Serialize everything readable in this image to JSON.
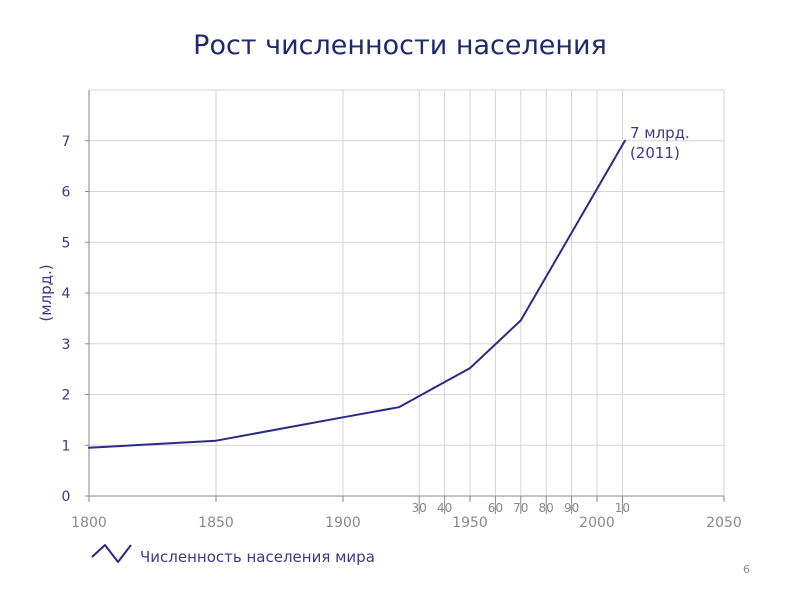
{
  "slide": {
    "title": "Рост численности населения",
    "page_number": "6"
  },
  "chart_data": {
    "type": "line",
    "title": "Рост численности населения",
    "xlabel": "",
    "ylabel": "(млрд.)",
    "xlim": [
      1800,
      2050
    ],
    "ylim": [
      0,
      8
    ],
    "grid": true,
    "major_x_ticks": [
      {
        "value": 1800,
        "label": "1800"
      },
      {
        "value": 1850,
        "label": "1850"
      },
      {
        "value": 1900,
        "label": "1900"
      },
      {
        "value": 1950,
        "label": "1950"
      },
      {
        "value": 2000,
        "label": "2000"
      },
      {
        "value": 2050,
        "label": "2050"
      }
    ],
    "minor_x_ticks": [
      {
        "value": 1930,
        "label": "30"
      },
      {
        "value": 1940,
        "label": "40"
      },
      {
        "value": 1960,
        "label": "60"
      },
      {
        "value": 1970,
        "label": "70"
      },
      {
        "value": 1980,
        "label": "80"
      },
      {
        "value": 1990,
        "label": "90"
      },
      {
        "value": 2010,
        "label": "10"
      }
    ],
    "y_ticks": [
      {
        "value": 0,
        "label": "0"
      },
      {
        "value": 1,
        "label": "1"
      },
      {
        "value": 2,
        "label": "2"
      },
      {
        "value": 3,
        "label": "3"
      },
      {
        "value": 4,
        "label": "4"
      },
      {
        "value": 5,
        "label": "5"
      },
      {
        "value": 6,
        "label": "6"
      },
      {
        "value": 7,
        "label": "7"
      }
    ],
    "series": [
      {
        "name": "Численность населения мира",
        "color": "#2b2b86",
        "x": [
          1800,
          1850,
          1900,
          1922,
          1950,
          1970,
          2011
        ],
        "y": [
          0.95,
          1.09,
          1.55,
          1.75,
          2.52,
          3.46,
          7.0
        ]
      }
    ],
    "annotations": [
      {
        "text": "7 млрд.",
        "x": 2011,
        "y": 7.0
      },
      {
        "text": "(2011)",
        "x": 2011,
        "y": 7.0
      }
    ],
    "legend_position": "bottom-left",
    "colors": {
      "line": "#2b2b86",
      "axis_text": "#3a3a8a",
      "tick_text": "#8a8a8a",
      "grid": "#d6d6d6",
      "axis": "#888888"
    }
  }
}
